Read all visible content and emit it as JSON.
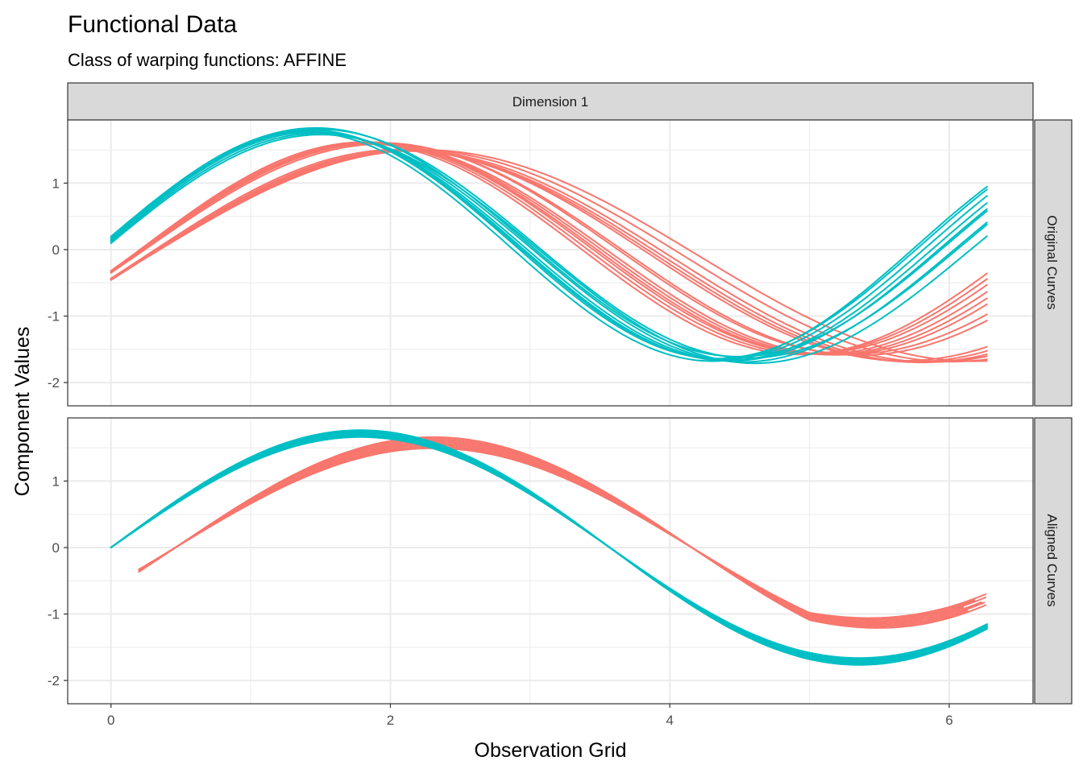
{
  "chart_data": {
    "type": "line",
    "title": "Functional Data",
    "subtitle": "Class of warping functions: AFFINE",
    "xlabel": "Observation Grid",
    "ylabel": "Component Values",
    "column_strip": "Dimension 1",
    "x_ticks": [
      0,
      2,
      4,
      6
    ],
    "xlim": [
      -0.31,
      6.6
    ],
    "y_ticks": [
      -2,
      -1,
      0,
      1
    ],
    "y_tick_labels": [
      "-2",
      "-1",
      "0",
      "1"
    ],
    "ylim": [
      -2.35,
      1.95
    ],
    "grid": true,
    "group_colors": {
      "red": "#F8766D",
      "teal": "#00BFC4"
    },
    "panels": [
      {
        "strip": "Original Curves",
        "series": [
          {
            "group": "red",
            "values": [
              {
                "shift": -0.3,
                "rate": 0.8
              },
              {
                "shift": -0.32,
                "rate": 0.82
              },
              {
                "shift": -0.34,
                "rate": 0.84
              },
              {
                "shift": -0.36,
                "rate": 0.85
              },
              {
                "shift": -0.28,
                "rate": 0.87
              },
              {
                "shift": -0.33,
                "rate": 0.86
              },
              {
                "shift": 0.0,
                "rate": 0.92
              },
              {
                "shift": 0.02,
                "rate": 0.95
              },
              {
                "shift": 0.05,
                "rate": 0.97
              },
              {
                "shift": 0.08,
                "rate": 0.99
              },
              {
                "shift": 0.04,
                "rate": 1.0
              },
              {
                "shift": 0.1,
                "rate": 0.98
              },
              {
                "shift": 0.03,
                "rate": 0.96
              },
              {
                "shift": 0.06,
                "rate": 0.93
              }
            ]
          },
          {
            "group": "teal",
            "values": [
              {
                "shift": -0.1,
                "rate": 1.15
              },
              {
                "shift": -0.05,
                "rate": 1.17
              },
              {
                "shift": 0.0,
                "rate": 1.19
              },
              {
                "shift": 0.05,
                "rate": 1.21
              },
              {
                "shift": 0.1,
                "rate": 1.16
              },
              {
                "shift": 0.15,
                "rate": 1.18
              },
              {
                "shift": 0.0,
                "rate": 1.2
              },
              {
                "shift": 0.08,
                "rate": 1.22
              },
              {
                "shift": -0.02,
                "rate": 1.23
              }
            ]
          }
        ]
      },
      {
        "strip": "Aligned Curves",
        "series": [
          {
            "group": "red",
            "x_start": [
              0.2,
              0.3,
              0.2,
              0.25,
              0.2,
              0.22,
              0.28,
              0.2
            ],
            "x_end": [
              6.27,
              6.2,
              6.27,
              6.1,
              6.25,
              6.27,
              6.15,
              6.27
            ]
          },
          {
            "group": "teal",
            "x_start": [
              0.0,
              0.0,
              0.0,
              0.0,
              0.0,
              0.0,
              0.0,
              0.0,
              0.0
            ],
            "x_end": [
              6.27,
              6.27,
              6.27,
              6.27,
              6.27,
              6.27,
              6.27,
              6.27,
              6.27
            ]
          }
        ]
      }
    ]
  }
}
